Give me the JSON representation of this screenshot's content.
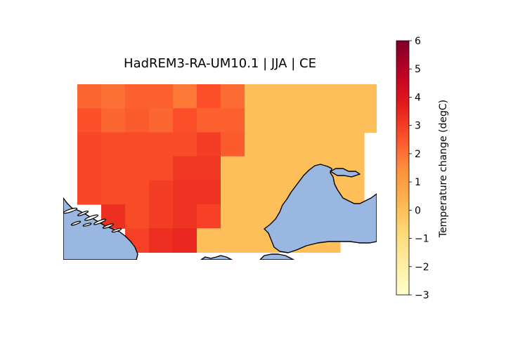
{
  "chart_data": {
    "type": "heatmap",
    "title": "HadREM3-RA-UM10.1 | JJA | CE",
    "colorbar": {
      "label": "Temperature change (degC)",
      "vmin": -3,
      "vmax": 6,
      "ticks": [
        "6",
        "5",
        "4",
        "3",
        "2",
        "1",
        "0",
        "−1",
        "−2",
        "−3"
      ],
      "colormap": "YlOrRd"
    },
    "grid": {
      "rows": 7,
      "cols": 13,
      "values": [
        [
          2.2,
          2.0,
          2.3,
          2.3,
          1.9,
          2.6,
          2.1,
          0.0,
          0.0,
          0.0,
          0.0,
          0.0,
          0.0
        ],
        [
          2.6,
          2.2,
          2.4,
          2.2,
          2.6,
          2.3,
          2.3,
          0.0,
          0.0,
          0.0,
          0.0,
          0.0,
          0.0
        ],
        [
          2.8,
          2.7,
          2.7,
          2.7,
          2.7,
          3.0,
          2.4,
          0.0,
          0.0,
          0.0,
          0.0,
          0.0,
          null
        ],
        [
          2.8,
          2.7,
          2.7,
          2.7,
          3.1,
          3.1,
          0.0,
          0.0,
          0.0,
          0.0,
          0.0,
          0.0,
          null
        ],
        [
          2.8,
          2.7,
          2.7,
          3.0,
          3.2,
          3.2,
          0.0,
          0.0,
          0.0,
          0.0,
          0.0,
          0.0,
          null
        ],
        [
          null,
          3.3,
          2.7,
          3.0,
          3.2,
          2.9,
          0.0,
          0.0,
          0.0,
          0.0,
          0.0,
          0.0,
          null
        ],
        [
          null,
          null,
          2.9,
          3.3,
          3.5,
          0.0,
          0.0,
          0.0,
          0.0,
          0.0,
          0.0,
          null,
          null
        ]
      ]
    }
  },
  "colors": {
    "sea": "#99b7e1",
    "coast": "#000000"
  }
}
